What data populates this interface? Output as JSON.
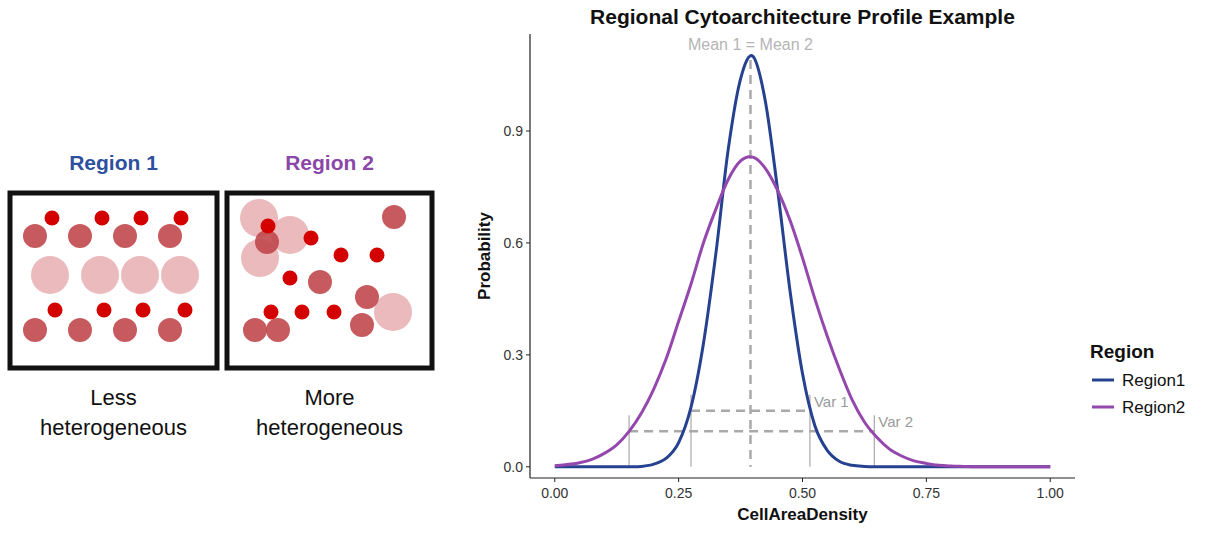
{
  "diagram": {
    "panels": [
      {
        "title": "Region 1",
        "caption": [
          "Less",
          "heterogeneous"
        ],
        "color": "#2f4f9f"
      },
      {
        "title": "Region 2",
        "caption": [
          "More",
          "heterogeneous"
        ],
        "color": "#8b47a8"
      }
    ]
  },
  "chart_data": {
    "type": "line",
    "title": "Regional Cytoarchitecture Profile Example",
    "x_label": "CellAreaDensity",
    "y_label": "Probability",
    "legend_title": "Region",
    "legend": "right",
    "x": [
      0,
      0.025,
      0.05,
      0.075,
      0.1,
      0.125,
      0.15,
      0.175,
      0.2,
      0.225,
      0.25,
      0.275,
      0.3,
      0.325,
      0.35,
      0.375,
      0.4,
      0.425,
      0.45,
      0.475,
      0.5,
      0.525,
      0.55,
      0.575,
      0.6,
      0.625,
      0.65,
      0.675,
      0.7,
      0.725,
      0.75,
      0.775,
      0.8,
      0.825,
      0.85,
      0.875,
      0.9,
      0.925,
      0.95,
      0.975,
      1.0
    ],
    "series": [
      {
        "name": "Region1",
        "color": "#26418f",
        "values": [
          0,
          0,
          0,
          0,
          0,
          0,
          0,
          0.001,
          0.007,
          0.023,
          0.065,
          0.16,
          0.33,
          0.57,
          0.85,
          1.04,
          1.1,
          0.98,
          0.74,
          0.47,
          0.25,
          0.11,
          0.044,
          0.014,
          0.004,
          0.001,
          0,
          0,
          0,
          0,
          0,
          0,
          0,
          0,
          0,
          0,
          0,
          0,
          0,
          0,
          0
        ]
      },
      {
        "name": "Region2",
        "color": "#9447ad",
        "values": [
          0.003,
          0.006,
          0.011,
          0.02,
          0.036,
          0.059,
          0.095,
          0.144,
          0.209,
          0.29,
          0.39,
          0.49,
          0.6,
          0.69,
          0.77,
          0.82,
          0.83,
          0.8,
          0.74,
          0.66,
          0.56,
          0.45,
          0.35,
          0.26,
          0.18,
          0.12,
          0.079,
          0.048,
          0.029,
          0.016,
          0.009,
          0.004,
          0.002,
          0.001,
          0,
          0,
          0,
          0,
          0,
          0,
          0
        ]
      }
    ],
    "xlim": [
      -0.05,
      1.05
    ],
    "ylim": [
      -0.03,
      1.16
    ],
    "xticks": [
      {
        "value": 0,
        "label": "0.00"
      },
      0.25,
      {
        "value": 0.5,
        "label": "0.50"
      },
      0.75,
      {
        "value": 1,
        "label": "1.00"
      }
    ],
    "yticks": [
      {
        "value": 0,
        "label": "0.0"
      },
      0.3,
      0.6,
      0.9
    ],
    "grid": false,
    "annotations": [
      {
        "text": "Mean 1 = Mean 2",
        "x": 0.395
      },
      {
        "text": "Var 1",
        "x_from": 0.275,
        "x_to": 0.515,
        "y": 0.15
      },
      {
        "text": "Var 2",
        "x_from": 0.15,
        "x_to": 0.645,
        "y": 0.095
      }
    ]
  }
}
